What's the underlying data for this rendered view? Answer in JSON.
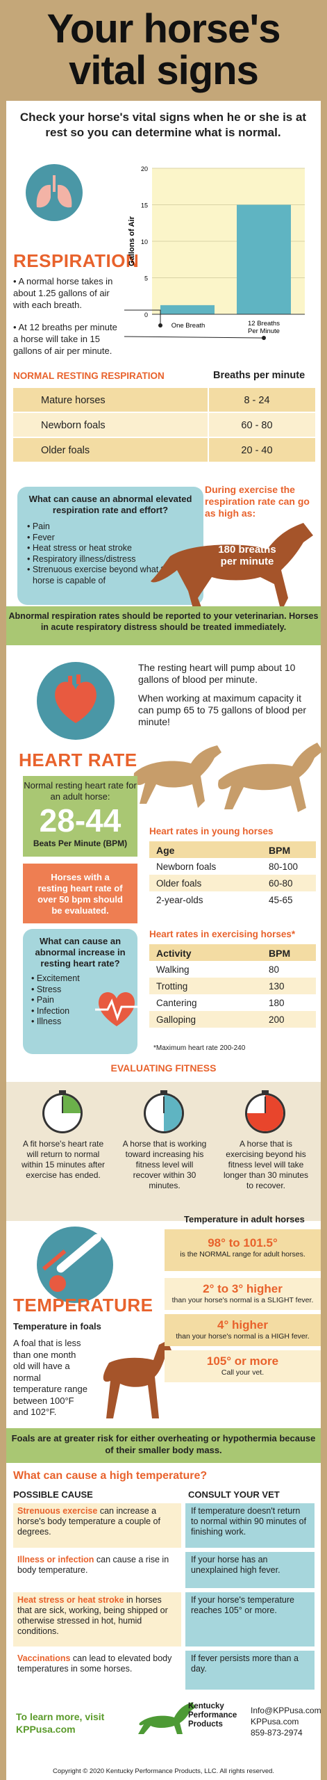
{
  "title": {
    "line1": "Your horse's",
    "line2": "vital signs"
  },
  "intro": "Check your horse's vital signs when he or she is at rest so you can determine what is normal.",
  "respiration": {
    "heading": "RESPIRATION",
    "bullet1": "A normal horse takes in about 1.25 gallons of air with each breath.",
    "bullet2": "At 12 breaths per minute a horse will take in 15 gallons of air per minute.",
    "chart_data": {
      "type": "bar",
      "categories": [
        "One Breath",
        "12 Breaths Per Minute"
      ],
      "values": [
        1.25,
        15
      ],
      "ylabel": "Gallons of Air",
      "ylim": [
        0,
        20
      ],
      "yticks": [
        0,
        5,
        10,
        15,
        20
      ]
    },
    "table_header": "NORMAL RESTING RESPIRATION",
    "table_col": "Breaths per minute",
    "rows": [
      {
        "label": "Mature horses",
        "value": "8 - 24"
      },
      {
        "label": "Newborn foals",
        "value": "60 - 80"
      },
      {
        "label": "Older foals",
        "value": "20 - 40"
      }
    ],
    "cause_title": "What can cause an abnormal elevated respiration rate and effort?",
    "causes": [
      "Pain",
      "Fever",
      "Heat stress or heat stroke",
      "Respiratory illness/distress",
      "Strenuous exercise beyond what the horse is capable of"
    ],
    "exercise_note": "During exercise the respiration rate can go as high as:",
    "max_rate": "180 breaths per minute",
    "warning": "Abnormal respiration rates should be reported to your veterinarian. Horses in acute respiratory distress should be treated immediately."
  },
  "heart": {
    "fact1": "The resting heart will pump about 10 gallons of blood per minute.",
    "fact2": "When working at maximum capacity it can pump 65 to 75 gallons of blood per minute!",
    "heading": "HEART RATE",
    "normal_label": "Normal resting heart rate for an adult horse:",
    "normal_value": "28-44",
    "normal_unit": "Beats Per Minute (BPM)",
    "alert": "Horses with a resting heart rate of over 50 bpm should be evaluated.",
    "cause_title": "What can cause an abnormal increase in resting heart rate?",
    "causes": [
      "Excitement",
      "Stress",
      "Pain",
      "Infection",
      "Illness"
    ],
    "young_title": "Heart rates in young horses",
    "young_cols": [
      "Age",
      "BPM"
    ],
    "young_rows": [
      {
        "label": "Newborn foals",
        "value": "80-100"
      },
      {
        "label": "Older foals",
        "value": "60-80"
      },
      {
        "label": "2-year-olds",
        "value": "45-65"
      }
    ],
    "exercise_title": "Heart rates in exercising horses*",
    "exercise_cols": [
      "Activity",
      "BPM"
    ],
    "exercise_rows": [
      {
        "label": "Walking",
        "value": "80"
      },
      {
        "label": "Trotting",
        "value": "130"
      },
      {
        "label": "Cantering",
        "value": "180"
      },
      {
        "label": "Galloping",
        "value": "200"
      }
    ],
    "footnote": "*Maximum heart rate 200-240"
  },
  "fitness": {
    "heading": "EVALUATING FITNESS",
    "items": [
      "A fit horse's heart rate will return to normal within 15 minutes after exercise has ended.",
      "A horse that is working toward increasing his fitness level will recover within 30 minutes.",
      "A horse that is exercising beyond his fitness level will take longer than 30 minutes to recover."
    ]
  },
  "temperature": {
    "adult_title": "Temperature in adult horses",
    "heading": "TEMPERATURE",
    "foal_title": "Temperature in foals",
    "foal_text": "A foal that is less than one month old will have a normal temperature range between 100°F and 102°F.",
    "ranges": [
      {
        "value": "98° to 101.5°",
        "desc": "is the NORMAL range for adult horses."
      },
      {
        "value": "2° to 3° higher",
        "desc": "than your horse's normal is a SLIGHT fever."
      },
      {
        "value": "4° higher",
        "desc": "than your horse's normal is a HIGH fever."
      },
      {
        "value": "105° or more",
        "desc": "Call your vet."
      }
    ],
    "warning": "Foals are at greater risk for either overheating or hypothermia because of their smaller body mass."
  },
  "high_temp": {
    "heading": "What can cause a high temperature?",
    "col1": "POSSIBLE CAUSE",
    "col2": "CONSULT YOUR VET",
    "rows": [
      {
        "cause_bold": "Strenuous exercise",
        "cause_rest": "can increase a horse's body temperature a couple of degrees.",
        "vet": "If temperature doesn't return to normal within 90 minutes of finishing work."
      },
      {
        "cause_bold": "Illness or infection",
        "cause_rest": "can cause a rise in body temperature.",
        "vet": "If your horse has an unexplained high fever."
      },
      {
        "cause_bold": "Heat stress or heat stroke",
        "cause_rest": "in horses that are sick, working, being shipped or otherwise stressed in hot, humid conditions.",
        "vet": "If your horse's temperature reaches 105° or more."
      },
      {
        "cause_bold": "Vaccinations",
        "cause_rest": "can lead to elevated body temperatures in some horses.",
        "vet": "If fever persists more than a day."
      }
    ]
  },
  "footer": {
    "learn": "To learn more, visit",
    "learn_link": "KPPusa.com",
    "brand1": "Kentucky",
    "brand2": "Performance",
    "brand3": "Products",
    "email": "Info@KPPusa.com",
    "site": "KPPusa.com",
    "phone": "859-873-2974",
    "copyright": "Copyright © 2020 Kentucky Performance Products, LLC. All rights reserved."
  },
  "colors": {
    "orange": "#e8622c",
    "tan": "#c4a779",
    "green": "#a9c773",
    "blue": "#a6d6dc",
    "yellow": "#f3dca3"
  }
}
